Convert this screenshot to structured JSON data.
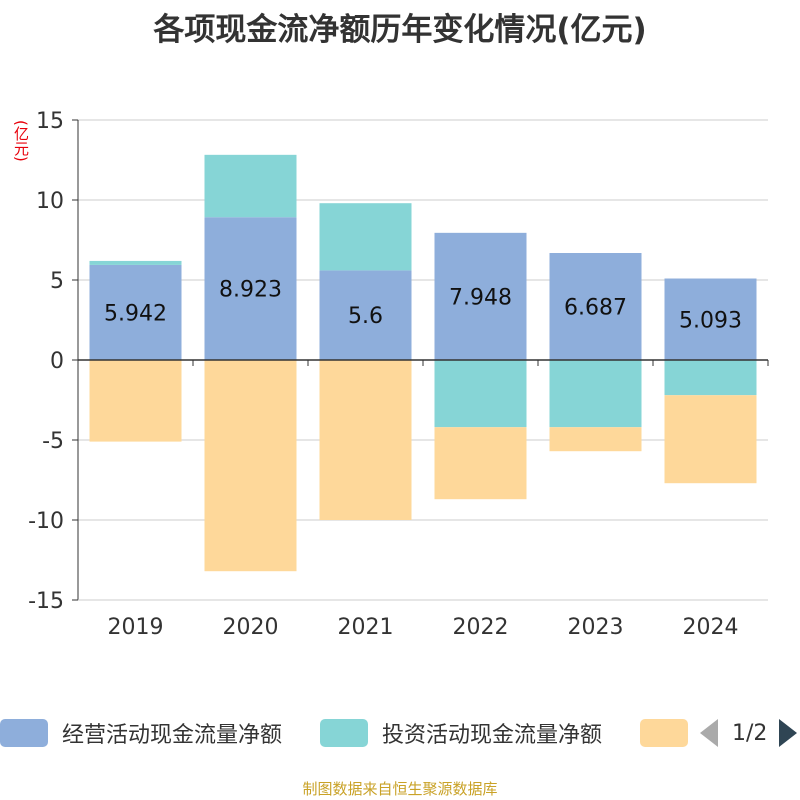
{
  "chart_data": {
    "type": "bar",
    "stacked": true,
    "title": "各项现金流净额历年变化情况(亿元)",
    "ylabel": "(亿元)",
    "categories": [
      "2019",
      "2020",
      "2021",
      "2022",
      "2023",
      "2024"
    ],
    "ylim": [
      -15,
      15
    ],
    "yticks": [
      15,
      10,
      5,
      0,
      -5,
      -10,
      -15
    ],
    "ytick_labels": [
      "15",
      "10",
      "5",
      "0",
      "-5",
      "-10",
      "-15"
    ],
    "grid": true,
    "series": [
      {
        "name": "经营活动现金流量净额",
        "color": "#8eaedb",
        "values": [
          5.942,
          8.923,
          5.6,
          7.948,
          6.687,
          5.093
        ],
        "labels": [
          "5.942",
          "8.923",
          "5.6",
          "7.948",
          "6.687",
          "5.093"
        ]
      },
      {
        "name": "投资活动现金流量净额",
        "color": "#86d5d6",
        "values": [
          0.25,
          3.9,
          4.2,
          -4.2,
          -4.2,
          -2.2
        ]
      },
      {
        "name": "",
        "color": "#fed89a",
        "values": [
          -5.1,
          -13.2,
          -10.0,
          -4.5,
          -1.5,
          -5.5
        ]
      }
    ]
  },
  "legend": {
    "page": "1/2"
  },
  "source": "制图数据来自恒生聚源数据库"
}
